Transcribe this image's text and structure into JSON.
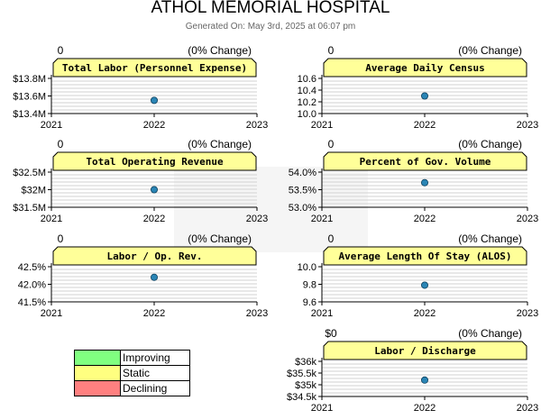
{
  "header": {
    "title": "ATHOL MEMORIAL HOSPITAL",
    "subtitle": "Generated On: May 3rd, 2025 at 06:07 pm"
  },
  "colors": {
    "panel_fill": "#ffff99",
    "dot": "#2a85b5",
    "improving": "#80ff80",
    "static": "#ffff80",
    "declining": "#ff8080"
  },
  "legend": [
    {
      "label": "Improving",
      "color": "#80ff80"
    },
    {
      "label": "Static",
      "color": "#ffff80"
    },
    {
      "label": "Declining",
      "color": "#ff8080"
    }
  ],
  "chart_data": [
    {
      "type": "scatter",
      "title": "Total Labor (Personnel Expense)",
      "top_left": "0",
      "top_right": "(0% Change)",
      "x_ticks": [
        "2021",
        "2022",
        "2023"
      ],
      "y_ticks": [
        "$13.4M",
        "$13.6M",
        "$13.8M"
      ],
      "ylim": [
        13.4,
        13.8
      ],
      "points": [
        {
          "x": "2022",
          "y": 13.55
        }
      ]
    },
    {
      "type": "scatter",
      "title": "Average Daily Census",
      "top_left": "0",
      "top_right": "(0% Change)",
      "x_ticks": [
        "2021",
        "2022",
        "2023"
      ],
      "y_ticks": [
        "10.0",
        "10.2",
        "10.4",
        "10.6"
      ],
      "ylim": [
        10.0,
        10.6
      ],
      "points": [
        {
          "x": "2022",
          "y": 10.3
        }
      ]
    },
    {
      "type": "scatter",
      "title": "Total Operating Revenue",
      "top_left": "0",
      "top_right": "(0% Change)",
      "x_ticks": [
        "2021",
        "2022",
        "2023"
      ],
      "y_ticks": [
        "$31.5M",
        "$32M",
        "$32.5M"
      ],
      "ylim": [
        31.5,
        32.5
      ],
      "points": [
        {
          "x": "2022",
          "y": 32.0
        }
      ]
    },
    {
      "type": "scatter",
      "title": "Percent of Gov. Volume",
      "top_left": "0",
      "top_right": "(0% Change)",
      "x_ticks": [
        "2021",
        "2022",
        "2023"
      ],
      "y_ticks": [
        "53.0%",
        "53.5%",
        "54.0%"
      ],
      "ylim": [
        53.0,
        54.0
      ],
      "points": [
        {
          "x": "2022",
          "y": 53.7
        }
      ]
    },
    {
      "type": "scatter",
      "title": "Labor / Op. Rev.",
      "top_left": "0",
      "top_right": "(0% Change)",
      "x_ticks": [
        "2021",
        "2022",
        "2023"
      ],
      "y_ticks": [
        "41.5%",
        "42.0%",
        "42.5%"
      ],
      "ylim": [
        41.5,
        42.5
      ],
      "points": [
        {
          "x": "2022",
          "y": 42.2
        }
      ]
    },
    {
      "type": "scatter",
      "title": "Average Length Of Stay (ALOS)",
      "top_left": "0",
      "top_right": "(0% Change)",
      "x_ticks": [
        "2021",
        "2022",
        "2023"
      ],
      "y_ticks": [
        "9.6",
        "9.8",
        "10.0"
      ],
      "ylim": [
        9.6,
        10.0
      ],
      "points": [
        {
          "x": "2022",
          "y": 9.79
        }
      ]
    },
    {
      "type": "scatter",
      "title": "Labor / Discharge",
      "top_left": "$0",
      "top_right": "(0% Change)",
      "x_ticks": [
        "2021",
        "2022",
        "2023"
      ],
      "y_ticks": [
        "$34.5k",
        "$35k",
        "$35.5k",
        "$36k"
      ],
      "ylim": [
        34.5,
        36.0
      ],
      "points": [
        {
          "x": "2022",
          "y": 35.2
        }
      ]
    }
  ]
}
